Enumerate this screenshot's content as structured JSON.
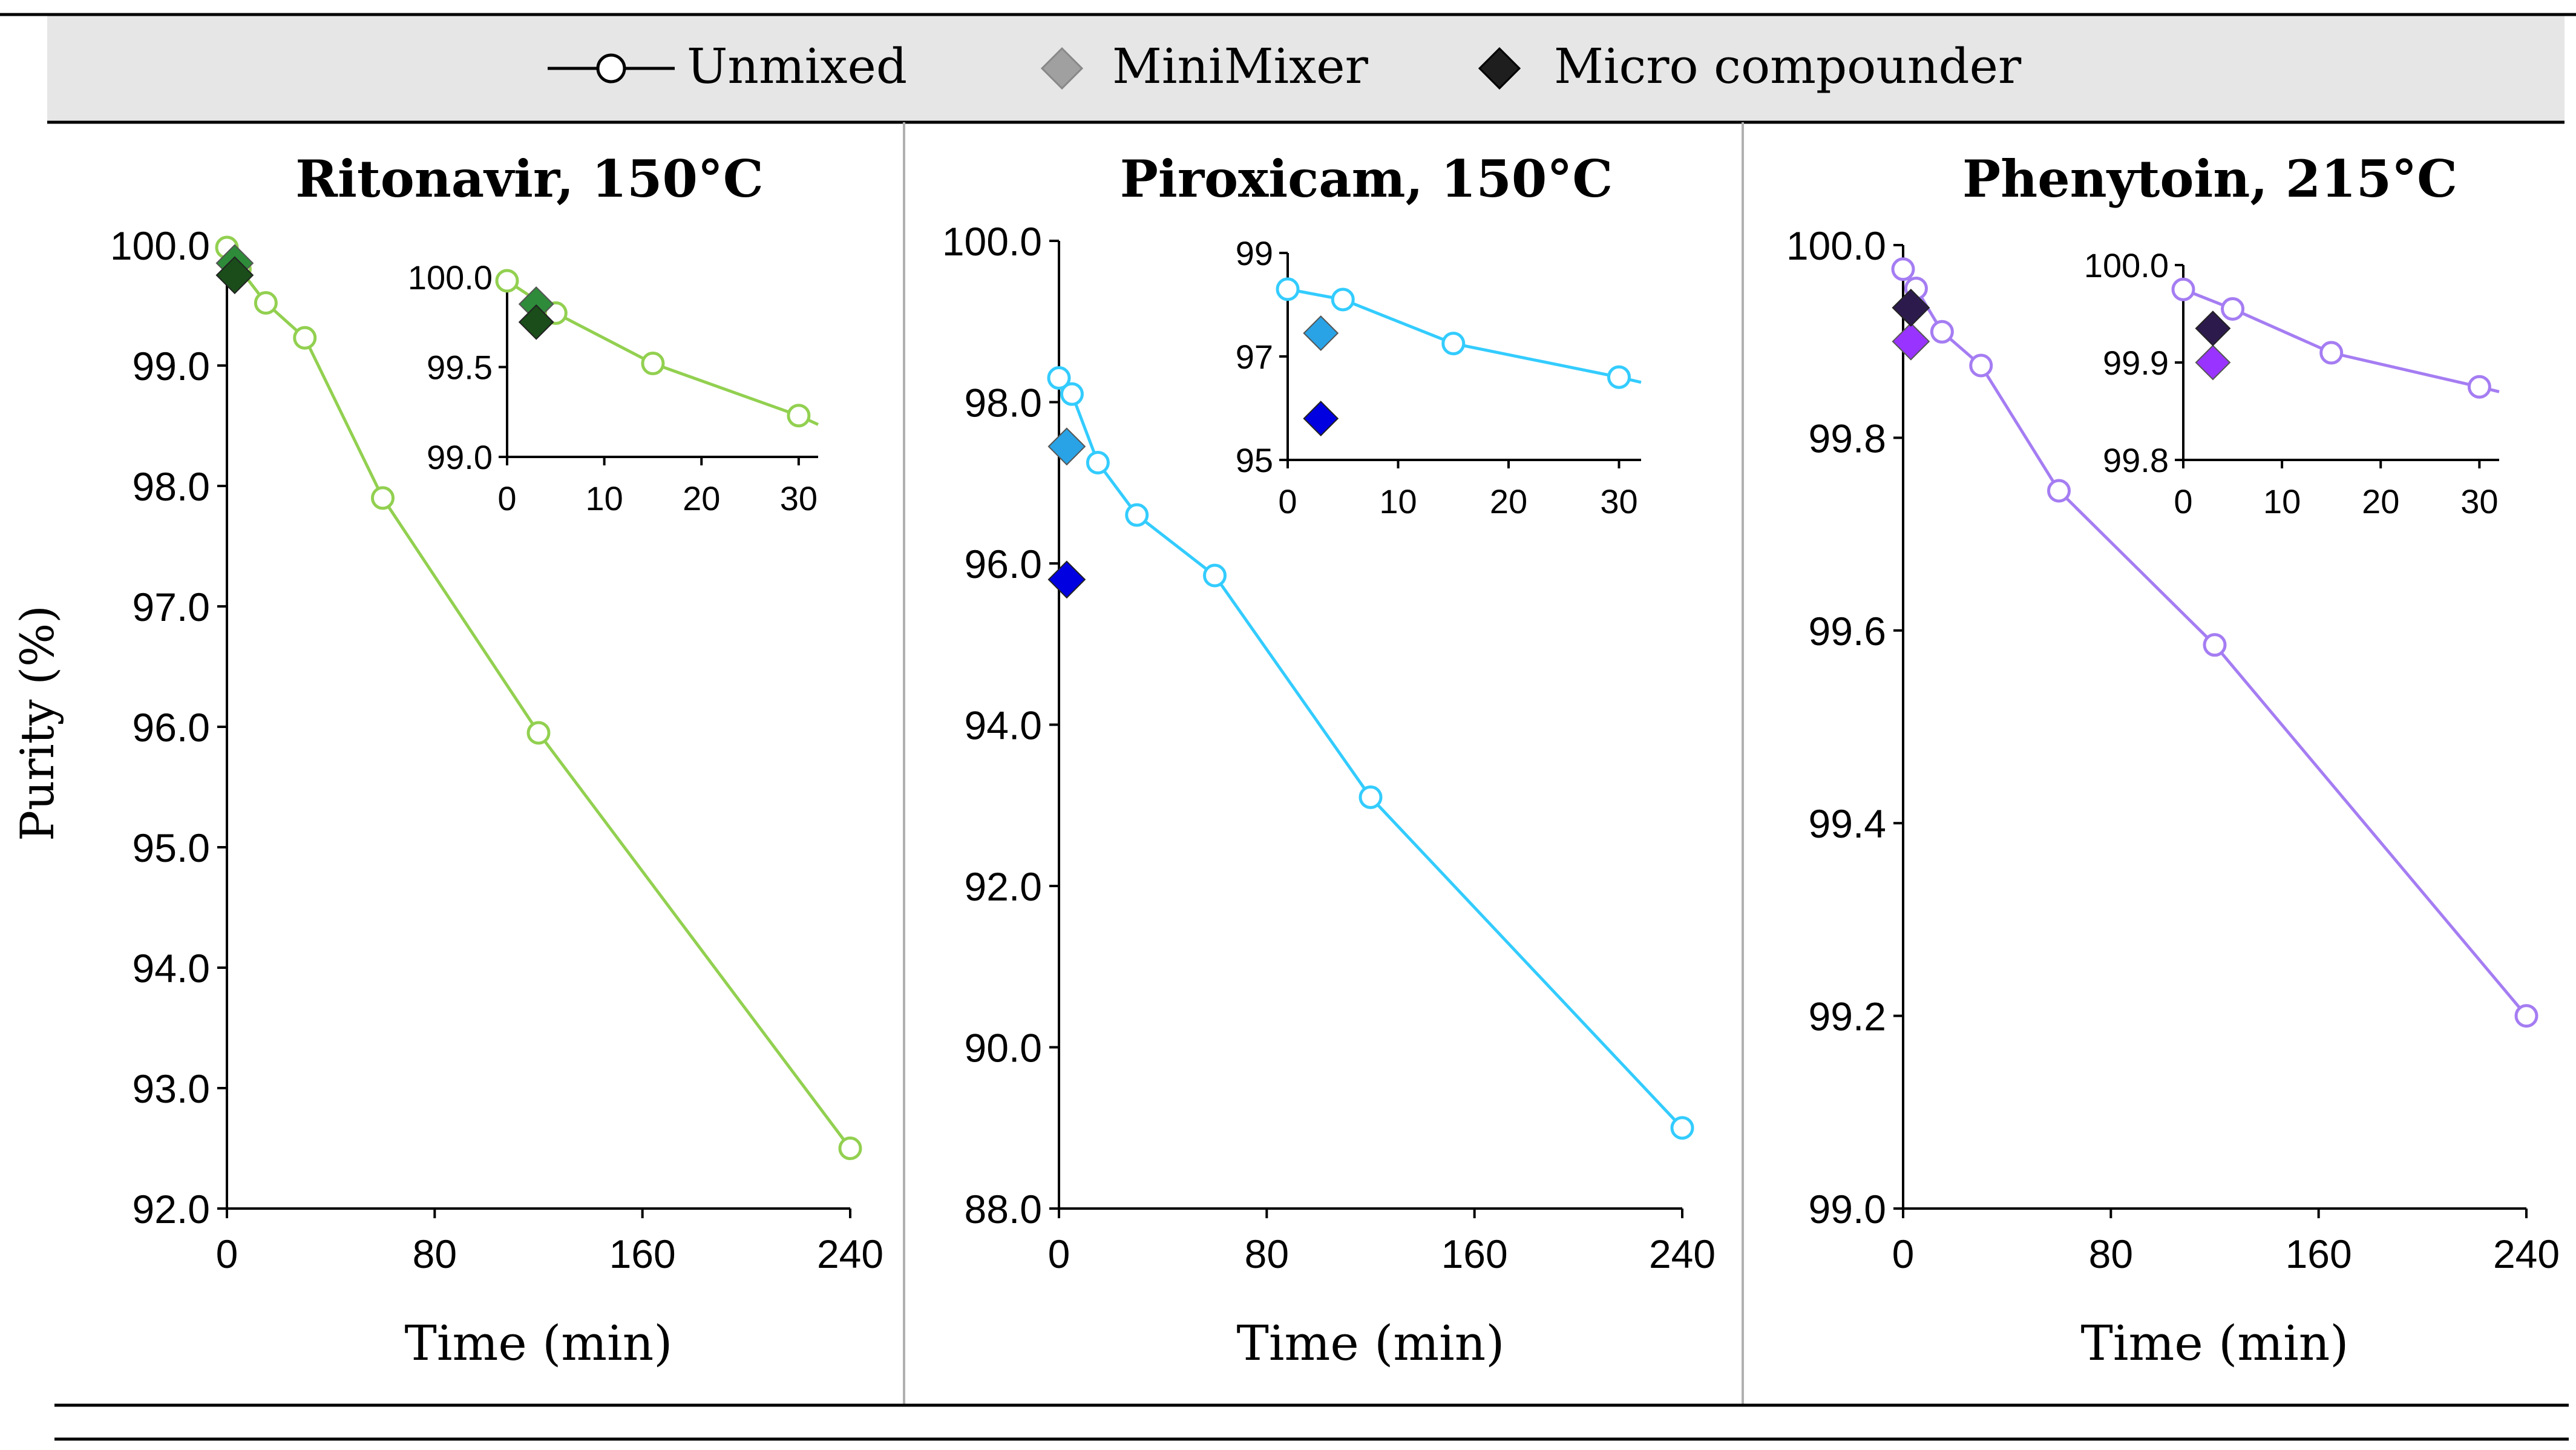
{
  "legend": {
    "unmixed": "Unmixed",
    "minimixer": "MiniMixer",
    "micro": "Micro compounder"
  },
  "shared_ylabel": "Purity (%)",
  "chart_data": [
    {
      "type": "line",
      "title": "Ritonavir, 150°C",
      "xlabel": "Time (min)",
      "ylabel": "Purity (%)",
      "xlim": [
        0,
        240
      ],
      "ylim": [
        92.0,
        100.0
      ],
      "xticks": [
        0,
        80,
        160,
        240
      ],
      "yticks": [
        92.0,
        93.0,
        94.0,
        95.0,
        96.0,
        97.0,
        98.0,
        99.0,
        100.0
      ],
      "ytick_labels": [
        "92.0",
        "93.0",
        "94.0",
        "95.0",
        "96.0",
        "97.0",
        "98.0",
        "99.0",
        "100.0"
      ],
      "color_line": "#92d050",
      "color_minimixer": "#2e8b3a",
      "color_micro": "#1a4d1a",
      "series": [
        {
          "name": "Unmixed",
          "x": [
            0,
            3,
            5,
            15,
            30,
            60,
            120,
            240
          ],
          "values": [
            99.98,
            99.85,
            99.8,
            99.52,
            99.23,
            97.9,
            95.95,
            92.5
          ]
        },
        {
          "name": "MiniMixer",
          "x": [
            3
          ],
          "values": [
            99.85
          ]
        },
        {
          "name": "Micro compounder",
          "x": [
            3
          ],
          "values": [
            99.75
          ]
        }
      ],
      "inset": {
        "xlim": [
          0,
          32
        ],
        "ylim": [
          99.0,
          100.0
        ],
        "xticks": [
          0,
          10,
          20,
          30
        ],
        "yticks": [
          99.0,
          99.5,
          100.0
        ],
        "ytick_labels": [
          "99.0",
          "99.5",
          "100.0"
        ],
        "series": [
          {
            "name": "Unmixed",
            "x": [
              0,
              5,
              15,
              30,
              32
            ],
            "values": [
              99.98,
              99.8,
              99.52,
              99.23,
              99.18
            ]
          },
          {
            "name": "MiniMixer",
            "x": [
              3
            ],
            "values": [
              99.85
            ]
          },
          {
            "name": "Micro compounder",
            "x": [
              3
            ],
            "values": [
              99.75
            ]
          }
        ]
      }
    },
    {
      "type": "line",
      "title": "Piroxicam, 150°C",
      "xlabel": "Time (min)",
      "ylabel": "",
      "xlim": [
        0,
        240
      ],
      "ylim": [
        88.0,
        100.0
      ],
      "xticks": [
        0,
        80,
        160,
        240
      ],
      "yticks": [
        88.0,
        90.0,
        92.0,
        94.0,
        96.0,
        98.0,
        100.0
      ],
      "ytick_labels": [
        "88.0",
        "90.0",
        "92.0",
        "94.0",
        "96.0",
        "98.0",
        "100.0"
      ],
      "color_line": "#33ccff",
      "color_minimixer": "#29a3e6",
      "color_micro": "#0000e0",
      "series": [
        {
          "name": "Unmixed",
          "x": [
            0,
            5,
            15,
            30,
            60,
            120,
            240
          ],
          "values": [
            98.3,
            98.1,
            97.25,
            96.6,
            95.85,
            93.1,
            89.0
          ]
        },
        {
          "name": "MiniMixer",
          "x": [
            3
          ],
          "values": [
            97.45
          ]
        },
        {
          "name": "Micro compounder",
          "x": [
            3
          ],
          "values": [
            95.8
          ]
        }
      ],
      "inset": {
        "xlim": [
          0,
          32
        ],
        "ylim": [
          95,
          99
        ],
        "xticks": [
          0,
          10,
          20,
          30
        ],
        "yticks": [
          95,
          97,
          99
        ],
        "ytick_labels": [
          "95",
          "97",
          "99"
        ],
        "series": [
          {
            "name": "Unmixed",
            "x": [
              0,
              5,
              15,
              30,
              32
            ],
            "values": [
              98.3,
              98.1,
              97.25,
              96.6,
              96.5
            ]
          },
          {
            "name": "MiniMixer",
            "x": [
              3
            ],
            "values": [
              97.45
            ]
          },
          {
            "name": "Micro compounder",
            "x": [
              3
            ],
            "values": [
              95.8
            ]
          }
        ]
      }
    },
    {
      "type": "line",
      "title": "Phenytoin, 215°C",
      "xlabel": "Time (min)",
      "ylabel": "",
      "xlim": [
        0,
        240
      ],
      "ylim": [
        99.0,
        100.0
      ],
      "xticks": [
        0,
        80,
        160,
        240
      ],
      "yticks": [
        99.0,
        99.2,
        99.4,
        99.6,
        99.8,
        100.0
      ],
      "ytick_labels": [
        "99.0",
        "99.2",
        "99.4",
        "99.6",
        "99.8",
        "100.0"
      ],
      "color_line": "#a57df2",
      "color_minimixer": "#9933ff",
      "color_micro": "#2d1a4d",
      "series": [
        {
          "name": "Unmixed",
          "x": [
            0,
            5,
            15,
            30,
            60,
            120,
            240
          ],
          "values": [
            99.975,
            99.955,
            99.91,
            99.875,
            99.745,
            99.585,
            99.2
          ]
        },
        {
          "name": "MiniMixer",
          "x": [
            3
          ],
          "values": [
            99.9
          ]
        },
        {
          "name": "Micro compounder",
          "x": [
            3
          ],
          "values": [
            99.935
          ]
        }
      ],
      "inset": {
        "xlim": [
          0,
          32
        ],
        "ylim": [
          99.8,
          100.0
        ],
        "xticks": [
          0,
          10,
          20,
          30
        ],
        "yticks": [
          99.8,
          99.9,
          100.0
        ],
        "ytick_labels": [
          "99.8",
          "99.9",
          "100.0"
        ],
        "series": [
          {
            "name": "Unmixed",
            "x": [
              0,
              5,
              15,
              30,
              32
            ],
            "values": [
              99.975,
              99.955,
              99.91,
              99.875,
              99.87
            ]
          },
          {
            "name": "MiniMixer",
            "x": [
              3
            ],
            "values": [
              99.9
            ]
          },
          {
            "name": "Micro compounder",
            "x": [
              3
            ],
            "values": [
              99.935
            ]
          }
        ]
      }
    }
  ]
}
